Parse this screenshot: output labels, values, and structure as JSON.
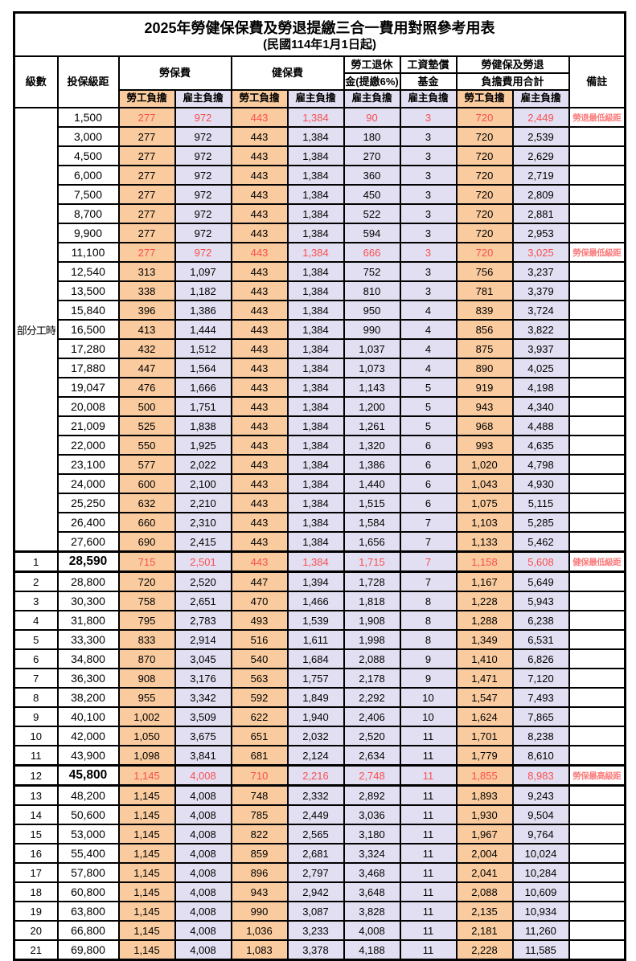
{
  "title": "2025年勞健保保費及勞退提繳三合一費用對照參考用表",
  "subtitle": "(民國114年1月1日起)",
  "colors": {
    "employee_bg": "#F9CB9E",
    "employer_bg": "#E1DFF1",
    "highlight_value_text": "#FB4F4F",
    "remark_text": "#FC7D7D",
    "border": "#000000"
  },
  "header": {
    "level": "級數",
    "bracket": "投保級距",
    "labor_insurance": "勞保費",
    "health_insurance": "健保費",
    "pension_line1": "勞工退休",
    "pension_line2": "金(提繳6%)",
    "wage_fund_line1": "工資墊償",
    "wage_fund_line2": "基金",
    "total_line1": "勞健保及勞退",
    "total_line2": "負擔費用合計",
    "employee": "勞工負擔",
    "employer": "雇主負擔",
    "remark": "備註"
  },
  "part_time_label": "部分工時",
  "rows": [
    {
      "level": "",
      "group": "pt",
      "bracket": "1,500",
      "values": [
        "277",
        "972",
        "443",
        "1,384",
        "90",
        "3",
        "720",
        "2,449"
      ],
      "remark": "勞退最低級距",
      "red": true
    },
    {
      "level": "",
      "group": "pt",
      "bracket": "3,000",
      "values": [
        "277",
        "972",
        "443",
        "1,384",
        "180",
        "3",
        "720",
        "2,539"
      ],
      "remark": ""
    },
    {
      "level": "",
      "group": "pt",
      "bracket": "4,500",
      "values": [
        "277",
        "972",
        "443",
        "1,384",
        "270",
        "3",
        "720",
        "2,629"
      ],
      "remark": ""
    },
    {
      "level": "",
      "group": "pt",
      "bracket": "6,000",
      "values": [
        "277",
        "972",
        "443",
        "1,384",
        "360",
        "3",
        "720",
        "2,719"
      ],
      "remark": ""
    },
    {
      "level": "",
      "group": "pt",
      "bracket": "7,500",
      "values": [
        "277",
        "972",
        "443",
        "1,384",
        "450",
        "3",
        "720",
        "2,809"
      ],
      "remark": ""
    },
    {
      "level": "",
      "group": "pt",
      "bracket": "8,700",
      "values": [
        "277",
        "972",
        "443",
        "1,384",
        "522",
        "3",
        "720",
        "2,881"
      ],
      "remark": ""
    },
    {
      "level": "",
      "group": "pt",
      "bracket": "9,900",
      "values": [
        "277",
        "972",
        "443",
        "1,384",
        "594",
        "3",
        "720",
        "2,953"
      ],
      "remark": ""
    },
    {
      "level": "",
      "group": "pt",
      "bracket": "11,100",
      "values": [
        "277",
        "972",
        "443",
        "1,384",
        "666",
        "3",
        "720",
        "3,025"
      ],
      "remark": "勞保最低級距",
      "red": true
    },
    {
      "level": "",
      "group": "pt",
      "bracket": "12,540",
      "values": [
        "313",
        "1,097",
        "443",
        "1,384",
        "752",
        "3",
        "756",
        "3,237"
      ],
      "remark": ""
    },
    {
      "level": "",
      "group": "pt",
      "bracket": "13,500",
      "values": [
        "338",
        "1,182",
        "443",
        "1,384",
        "810",
        "3",
        "781",
        "3,379"
      ],
      "remark": ""
    },
    {
      "level": "",
      "group": "pt",
      "bracket": "15,840",
      "values": [
        "396",
        "1,386",
        "443",
        "1,384",
        "950",
        "4",
        "839",
        "3,724"
      ],
      "remark": ""
    },
    {
      "level": "",
      "group": "pt",
      "bracket": "16,500",
      "values": [
        "413",
        "1,444",
        "443",
        "1,384",
        "990",
        "4",
        "856",
        "3,822"
      ],
      "remark": ""
    },
    {
      "level": "",
      "group": "pt",
      "bracket": "17,280",
      "values": [
        "432",
        "1,512",
        "443",
        "1,384",
        "1,037",
        "4",
        "875",
        "3,937"
      ],
      "remark": ""
    },
    {
      "level": "",
      "group": "pt",
      "bracket": "17,880",
      "values": [
        "447",
        "1,564",
        "443",
        "1,384",
        "1,073",
        "4",
        "890",
        "4,025"
      ],
      "remark": ""
    },
    {
      "level": "",
      "group": "pt",
      "bracket": "19,047",
      "values": [
        "476",
        "1,666",
        "443",
        "1,384",
        "1,143",
        "5",
        "919",
        "4,198"
      ],
      "remark": ""
    },
    {
      "level": "",
      "group": "pt",
      "bracket": "20,008",
      "values": [
        "500",
        "1,751",
        "443",
        "1,384",
        "1,200",
        "5",
        "943",
        "4,340"
      ],
      "remark": ""
    },
    {
      "level": "",
      "group": "pt",
      "bracket": "21,009",
      "values": [
        "525",
        "1,838",
        "443",
        "1,384",
        "1,261",
        "5",
        "968",
        "4,488"
      ],
      "remark": ""
    },
    {
      "level": "",
      "group": "pt",
      "bracket": "22,000",
      "values": [
        "550",
        "1,925",
        "443",
        "1,384",
        "1,320",
        "6",
        "993",
        "4,635"
      ],
      "remark": ""
    },
    {
      "level": "",
      "group": "pt",
      "bracket": "23,100",
      "values": [
        "577",
        "2,022",
        "443",
        "1,384",
        "1,386",
        "6",
        "1,020",
        "4,798"
      ],
      "remark": ""
    },
    {
      "level": "",
      "group": "pt",
      "bracket": "24,000",
      "values": [
        "600",
        "2,100",
        "443",
        "1,384",
        "1,440",
        "6",
        "1,043",
        "4,930"
      ],
      "remark": ""
    },
    {
      "level": "",
      "group": "pt",
      "bracket": "25,250",
      "values": [
        "632",
        "2,210",
        "443",
        "1,384",
        "1,515",
        "6",
        "1,075",
        "5,115"
      ],
      "remark": ""
    },
    {
      "level": "",
      "group": "pt",
      "bracket": "26,400",
      "values": [
        "660",
        "2,310",
        "443",
        "1,384",
        "1,584",
        "7",
        "1,103",
        "5,285"
      ],
      "remark": ""
    },
    {
      "level": "",
      "group": "pt",
      "bracket": "27,600",
      "values": [
        "690",
        "2,415",
        "443",
        "1,384",
        "1,656",
        "7",
        "1,133",
        "5,462"
      ],
      "remark": ""
    },
    {
      "level": "1",
      "bracket": "28,590",
      "values": [
        "715",
        "2,501",
        "443",
        "1,384",
        "1,715",
        "7",
        "1,158",
        "5,608"
      ],
      "remark": "健保最低級距",
      "red": true,
      "bold_bracket": true,
      "thick": true
    },
    {
      "level": "2",
      "bracket": "28,800",
      "values": [
        "720",
        "2,520",
        "447",
        "1,394",
        "1,728",
        "7",
        "1,167",
        "5,649"
      ],
      "remark": ""
    },
    {
      "level": "3",
      "bracket": "30,300",
      "values": [
        "758",
        "2,651",
        "470",
        "1,466",
        "1,818",
        "8",
        "1,228",
        "5,943"
      ],
      "remark": ""
    },
    {
      "level": "4",
      "bracket": "31,800",
      "values": [
        "795",
        "2,783",
        "493",
        "1,539",
        "1,908",
        "8",
        "1,288",
        "6,238"
      ],
      "remark": ""
    },
    {
      "level": "5",
      "bracket": "33,300",
      "values": [
        "833",
        "2,914",
        "516",
        "1,611",
        "1,998",
        "8",
        "1,349",
        "6,531"
      ],
      "remark": ""
    },
    {
      "level": "6",
      "bracket": "34,800",
      "values": [
        "870",
        "3,045",
        "540",
        "1,684",
        "2,088",
        "9",
        "1,410",
        "6,826"
      ],
      "remark": ""
    },
    {
      "level": "7",
      "bracket": "36,300",
      "values": [
        "908",
        "3,176",
        "563",
        "1,757",
        "2,178",
        "9",
        "1,471",
        "7,120"
      ],
      "remark": ""
    },
    {
      "level": "8",
      "bracket": "38,200",
      "values": [
        "955",
        "3,342",
        "592",
        "1,849",
        "2,292",
        "10",
        "1,547",
        "7,493"
      ],
      "remark": ""
    },
    {
      "level": "9",
      "bracket": "40,100",
      "values": [
        "1,002",
        "3,509",
        "622",
        "1,940",
        "2,406",
        "10",
        "1,624",
        "7,865"
      ],
      "remark": ""
    },
    {
      "level": "10",
      "bracket": "42,000",
      "values": [
        "1,050",
        "3,675",
        "651",
        "2,032",
        "2,520",
        "11",
        "1,701",
        "8,238"
      ],
      "remark": ""
    },
    {
      "level": "11",
      "bracket": "43,900",
      "values": [
        "1,098",
        "3,841",
        "681",
        "2,124",
        "2,634",
        "11",
        "1,779",
        "8,610"
      ],
      "remark": ""
    },
    {
      "level": "12",
      "bracket": "45,800",
      "values": [
        "1,145",
        "4,008",
        "710",
        "2,216",
        "2,748",
        "11",
        "1,855",
        "8,983"
      ],
      "remark": "勞保最高級距",
      "red": true,
      "bold_bracket": true,
      "thick": true
    },
    {
      "level": "13",
      "bracket": "48,200",
      "values": [
        "1,145",
        "4,008",
        "748",
        "2,332",
        "2,892",
        "11",
        "1,893",
        "9,243"
      ],
      "remark": ""
    },
    {
      "level": "14",
      "bracket": "50,600",
      "values": [
        "1,145",
        "4,008",
        "785",
        "2,449",
        "3,036",
        "11",
        "1,930",
        "9,504"
      ],
      "remark": ""
    },
    {
      "level": "15",
      "bracket": "53,000",
      "values": [
        "1,145",
        "4,008",
        "822",
        "2,565",
        "3,180",
        "11",
        "1,967",
        "9,764"
      ],
      "remark": ""
    },
    {
      "level": "16",
      "bracket": "55,400",
      "values": [
        "1,145",
        "4,008",
        "859",
        "2,681",
        "3,324",
        "11",
        "2,004",
        "10,024"
      ],
      "remark": ""
    },
    {
      "level": "17",
      "bracket": "57,800",
      "values": [
        "1,145",
        "4,008",
        "896",
        "2,797",
        "3,468",
        "11",
        "2,041",
        "10,284"
      ],
      "remark": ""
    },
    {
      "level": "18",
      "bracket": "60,800",
      "values": [
        "1,145",
        "4,008",
        "943",
        "2,942",
        "3,648",
        "11",
        "2,088",
        "10,609"
      ],
      "remark": ""
    },
    {
      "level": "19",
      "bracket": "63,800",
      "values": [
        "1,145",
        "4,008",
        "990",
        "3,087",
        "3,828",
        "11",
        "2,135",
        "10,934"
      ],
      "remark": ""
    },
    {
      "level": "20",
      "bracket": "66,800",
      "values": [
        "1,145",
        "4,008",
        "1,036",
        "3,233",
        "4,008",
        "11",
        "2,181",
        "11,260"
      ],
      "remark": ""
    },
    {
      "level": "21",
      "bracket": "69,800",
      "values": [
        "1,145",
        "4,008",
        "1,083",
        "3,378",
        "4,188",
        "11",
        "2,228",
        "11,585"
      ],
      "remark": ""
    }
  ],
  "value_column_kinds": [
    "employee",
    "employer",
    "employee",
    "employer",
    "employer",
    "employer",
    "employee",
    "employer"
  ]
}
